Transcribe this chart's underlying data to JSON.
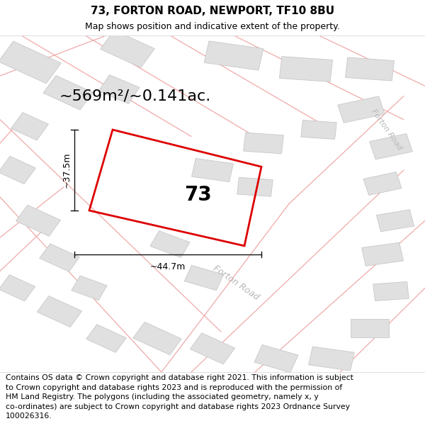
{
  "title_line1": "73, FORTON ROAD, NEWPORT, TF10 8BU",
  "title_line2": "Map shows position and indicative extent of the property.",
  "footer_text": "Contains OS data © Crown copyright and database right 2021. This information is subject\nto Crown copyright and database rights 2023 and is reproduced with the permission of\nHM Land Registry. The polygons (including the associated geometry, namely x, y\nco-ordinates) are subject to Crown copyright and database rights 2023 Ordnance Survey\n100026316.",
  "area_text": "~569m²/~0.141ac.",
  "label_73": "73",
  "dim_width": "~44.7m",
  "dim_height": "~37.5m",
  "road_label_center": "Forton Road",
  "road_label_right": "Forton Road",
  "map_background": "#ffffff",
  "building_fill": "#e0e0e0",
  "building_edge": "#c8c8c8",
  "road_line_color": "#f0aaaa",
  "plot_edge_color": "#dd0000",
  "dim_line_color": "#111111",
  "title_fontsize": 11,
  "subtitle_fontsize": 9,
  "footer_fontsize": 7.8,
  "area_fontsize": 16,
  "label_fontsize": 20,
  "dim_fontsize": 9
}
